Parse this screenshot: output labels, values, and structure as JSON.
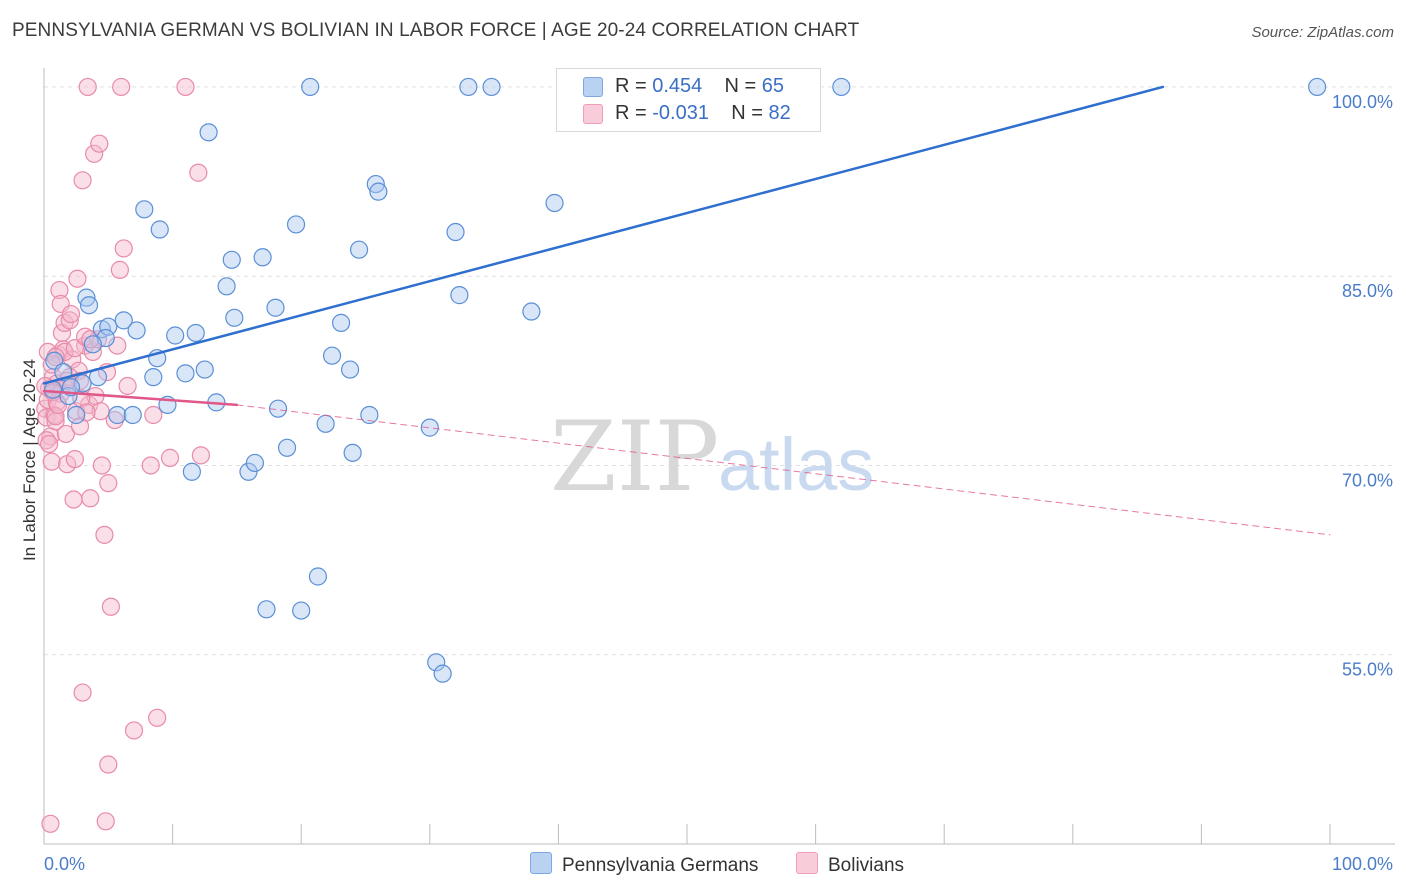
{
  "header": {
    "title": "PENNSYLVANIA GERMAN VS BOLIVIAN IN LABOR FORCE | AGE 20-24 CORRELATION CHART",
    "source": "Source: ZipAtlas.com"
  },
  "legend": {
    "items": [
      {
        "r_label": "R =",
        "r_value": "0.454",
        "n_label": "N =",
        "n_value": "65",
        "color": "#a9c7ef"
      },
      {
        "r_label": "R =",
        "r_value": "-0.031",
        "n_label": "N =",
        "n_value": "82",
        "color": "#f5b8cb"
      }
    ]
  },
  "bottom_legend": {
    "series_a": "Pennsylvania Germans",
    "series_b": "Bolivians"
  },
  "watermark": {
    "part1": "ZIP",
    "part2": "atlas"
  },
  "colors": {
    "blue_fill": "#a9c7ef",
    "blue_stroke": "#5b8fd6",
    "blue_line": "#2e6fcf",
    "pink_fill": "#f5b8cb",
    "pink_stroke": "#e98aa9",
    "pink_line": "#e0588a",
    "grid": "#e0e0e0",
    "tick_text": "#4a7cc9"
  },
  "chart_data": {
    "type": "scatter",
    "title": "PENNSYLVANIA GERMAN VS BOLIVIAN IN LABOR FORCE | AGE 20-24 CORRELATION CHART",
    "xlabel": "",
    "ylabel": "In Labor Force | Age 20-24",
    "xlim": [
      0,
      100
    ],
    "ylim": [
      40.0,
      101.5
    ],
    "x_tick_labels": [
      "0.0%",
      "100.0%"
    ],
    "y_ticks": [
      55.0,
      70.0,
      85.0,
      100.0
    ],
    "y_tick_labels": [
      "55.0%",
      "70.0%",
      "85.0%",
      "100.0%"
    ],
    "grid": true,
    "series": [
      {
        "name": "Pennsylvania Germans",
        "points": [
          [
            0.8,
            78.3
          ],
          [
            3.3,
            83.3
          ],
          [
            3.5,
            82.7
          ],
          [
            4.5,
            80.8
          ],
          [
            5.0,
            81.0
          ],
          [
            4.8,
            80.1
          ],
          [
            6.2,
            81.5
          ],
          [
            7.2,
            80.7
          ],
          [
            7.8,
            90.3
          ],
          [
            9.0,
            88.7
          ],
          [
            8.5,
            77.0
          ],
          [
            8.8,
            78.5
          ],
          [
            10.2,
            80.3
          ],
          [
            11.0,
            77.3
          ],
          [
            11.8,
            80.5
          ],
          [
            11.5,
            69.5
          ],
          [
            12.5,
            77.6
          ],
          [
            12.8,
            96.4
          ],
          [
            13.4,
            75.0
          ],
          [
            14.2,
            84.2
          ],
          [
            14.6,
            86.3
          ],
          [
            14.8,
            81.7
          ],
          [
            15.9,
            69.5
          ],
          [
            16.4,
            70.2
          ],
          [
            17.0,
            86.5
          ],
          [
            17.3,
            58.6
          ],
          [
            18.0,
            82.5
          ],
          [
            18.2,
            74.5
          ],
          [
            18.9,
            71.4
          ],
          [
            19.6,
            89.1
          ],
          [
            20.0,
            58.5
          ],
          [
            20.7,
            100.0
          ],
          [
            21.3,
            61.2
          ],
          [
            21.9,
            73.3
          ],
          [
            22.4,
            78.7
          ],
          [
            23.1,
            81.3
          ],
          [
            23.8,
            77.6
          ],
          [
            24.0,
            71.0
          ],
          [
            24.5,
            87.1
          ],
          [
            25.3,
            74.0
          ],
          [
            25.8,
            92.3
          ],
          [
            26.0,
            91.7
          ],
          [
            30.0,
            73.0
          ],
          [
            30.5,
            54.4
          ],
          [
            31.0,
            53.5
          ],
          [
            32.0,
            88.5
          ],
          [
            32.3,
            83.5
          ],
          [
            33.0,
            100.0
          ],
          [
            34.8,
            100.0
          ],
          [
            37.9,
            82.2
          ],
          [
            39.7,
            90.8
          ],
          [
            46.5,
            100.0
          ],
          [
            62.0,
            100.0
          ],
          [
            99.0,
            100.0
          ],
          [
            2.5,
            74.0
          ],
          [
            3.0,
            76.5
          ],
          [
            3.8,
            79.6
          ],
          [
            4.2,
            77.0
          ],
          [
            1.9,
            75.5
          ],
          [
            5.7,
            74.0
          ],
          [
            6.9,
            74.0
          ],
          [
            2.1,
            76.2
          ],
          [
            1.5,
            77.4
          ],
          [
            9.6,
            74.8
          ],
          [
            0.7,
            76.0
          ]
        ]
      },
      {
        "name": "Bolivians",
        "points": [
          [
            0.1,
            74.5
          ],
          [
            0.2,
            73.8
          ],
          [
            0.3,
            75.2
          ],
          [
            0.4,
            76.1
          ],
          [
            0.5,
            72.3
          ],
          [
            0.6,
            70.3
          ],
          [
            0.7,
            77.0
          ],
          [
            0.8,
            74.0
          ],
          [
            0.9,
            73.5
          ],
          [
            1.0,
            75.0
          ],
          [
            1.1,
            78.8
          ],
          [
            1.2,
            83.9
          ],
          [
            1.3,
            82.8
          ],
          [
            1.4,
            80.5
          ],
          [
            1.5,
            79.2
          ],
          [
            1.6,
            81.3
          ],
          [
            1.7,
            72.5
          ],
          [
            1.8,
            70.1
          ],
          [
            1.9,
            76.3
          ],
          [
            2.0,
            81.5
          ],
          [
            2.1,
            82.0
          ],
          [
            2.2,
            78.4
          ],
          [
            2.3,
            67.3
          ],
          [
            2.4,
            70.5
          ],
          [
            2.5,
            74.3
          ],
          [
            2.6,
            84.8
          ],
          [
            2.7,
            77.5
          ],
          [
            2.8,
            73.1
          ],
          [
            3.0,
            92.6
          ],
          [
            3.2,
            79.5
          ],
          [
            3.4,
            100.0
          ],
          [
            3.5,
            74.8
          ],
          [
            3.6,
            67.4
          ],
          [
            3.8,
            79.0
          ],
          [
            3.9,
            94.7
          ],
          [
            4.0,
            75.5
          ],
          [
            4.2,
            80.0
          ],
          [
            4.3,
            95.5
          ],
          [
            4.5,
            70.0
          ],
          [
            4.7,
            64.5
          ],
          [
            5.0,
            68.6
          ],
          [
            5.2,
            58.8
          ],
          [
            5.5,
            73.6
          ],
          [
            5.7,
            79.5
          ],
          [
            5.9,
            85.5
          ],
          [
            6.2,
            87.2
          ],
          [
            6.5,
            76.3
          ],
          [
            7.0,
            49.0
          ],
          [
            8.5,
            74.0
          ],
          [
            8.8,
            50.0
          ],
          [
            9.8,
            70.6
          ],
          [
            11.0,
            100.0
          ],
          [
            12.0,
            93.2
          ],
          [
            12.2,
            70.8
          ],
          [
            6.0,
            100.0
          ],
          [
            0.5,
            41.6
          ],
          [
            3.0,
            52.0
          ],
          [
            5.0,
            46.3
          ],
          [
            4.8,
            41.8
          ],
          [
            8.3,
            70.0
          ],
          [
            0.3,
            79.0
          ],
          [
            0.6,
            78.0
          ],
          [
            1.0,
            76.5
          ],
          [
            1.3,
            75.7
          ],
          [
            1.6,
            79.0
          ],
          [
            2.0,
            77.0
          ],
          [
            2.4,
            79.3
          ],
          [
            2.8,
            76.7
          ],
          [
            3.2,
            80.2
          ],
          [
            3.6,
            80.0
          ],
          [
            4.4,
            74.3
          ],
          [
            4.9,
            77.4
          ],
          [
            0.2,
            72.0
          ],
          [
            0.4,
            71.7
          ],
          [
            0.9,
            78.6
          ],
          [
            1.8,
            76.7
          ],
          [
            2.9,
            75.3
          ],
          [
            3.3,
            74.2
          ],
          [
            0.1,
            76.3
          ],
          [
            0.7,
            75.8
          ],
          [
            0.9,
            73.9
          ],
          [
            1.1,
            74.8
          ]
        ]
      }
    ],
    "trend_lines": [
      {
        "series": "Pennsylvania Germans",
        "style": "solid",
        "from": [
          0.0,
          76.5
        ],
        "to": [
          87.0,
          100.0
        ]
      },
      {
        "series": "Bolivians",
        "style": "solid",
        "from": [
          0.0,
          75.9
        ],
        "to": [
          15.0,
          74.8
        ]
      },
      {
        "series": "Bolivians",
        "style": "dashed",
        "from": [
          15.0,
          74.8
        ],
        "to": [
          100.0,
          64.5
        ]
      }
    ]
  }
}
